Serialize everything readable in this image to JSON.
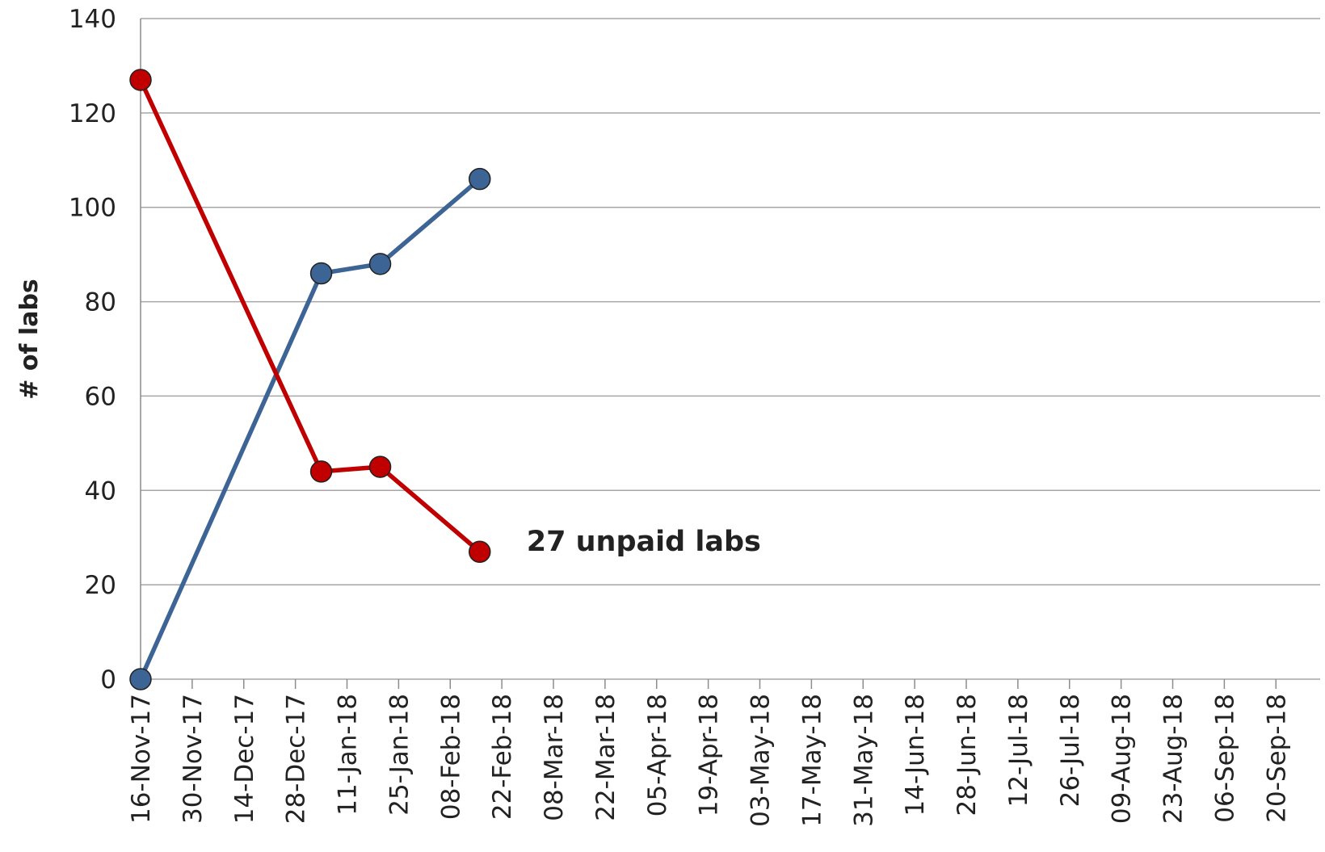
{
  "chart_data": {
    "type": "line",
    "y_label": "# of labs",
    "annotation": "27 unpaid labs",
    "x": [
      "2017-11-16",
      "2018-01-04",
      "2018-01-20",
      "2018-02-16"
    ],
    "series": [
      {
        "color": "#3c6494",
        "values": [
          0,
          86,
          88,
          106
        ]
      },
      {
        "color": "#c00000",
        "values": [
          127,
          44,
          45,
          27
        ]
      }
    ],
    "xlim": [
      "2017-11-16",
      "2018-10-02"
    ],
    "xticks": [
      {
        "value": "2017-11-16",
        "label": "16-Nov-17"
      },
      {
        "value": "2017-11-30",
        "label": "30-Nov-17"
      },
      {
        "value": "2017-12-14",
        "label": "14-Dec-17"
      },
      {
        "value": "2017-12-28",
        "label": "28-Dec-17"
      },
      {
        "value": "2018-01-11",
        "label": "11-Jan-18"
      },
      {
        "value": "2018-01-25",
        "label": "25-Jan-18"
      },
      {
        "value": "2018-02-08",
        "label": "08-Feb-18"
      },
      {
        "value": "2018-02-22",
        "label": "22-Feb-18"
      },
      {
        "value": "2018-03-08",
        "label": "08-Mar-18"
      },
      {
        "value": "2018-03-22",
        "label": "22-Mar-18"
      },
      {
        "value": "2018-04-05",
        "label": "05-Apr-18"
      },
      {
        "value": "2018-04-19",
        "label": "19-Apr-18"
      },
      {
        "value": "2018-05-03",
        "label": "03-May-18"
      },
      {
        "value": "2018-05-17",
        "label": "17-May-18"
      },
      {
        "value": "2018-05-31",
        "label": "31-May-18"
      },
      {
        "value": "2018-06-14",
        "label": "14-Jun-18"
      },
      {
        "value": "2018-06-28",
        "label": "28-Jun-18"
      },
      {
        "value": "2018-07-12",
        "label": "12-Jul-18"
      },
      {
        "value": "2018-07-26",
        "label": "26-Jul-18"
      },
      {
        "value": "2018-08-09",
        "label": "09-Aug-18"
      },
      {
        "value": "2018-08-23",
        "label": "23-Aug-18"
      },
      {
        "value": "2018-09-06",
        "label": "06-Sep-18"
      },
      {
        "value": "2018-09-20",
        "label": "20-Sep-18"
      }
    ],
    "ylim": [
      0,
      140
    ],
    "yticks": [
      0,
      20,
      40,
      60,
      80,
      100,
      120,
      140
    ],
    "grid": true
  }
}
